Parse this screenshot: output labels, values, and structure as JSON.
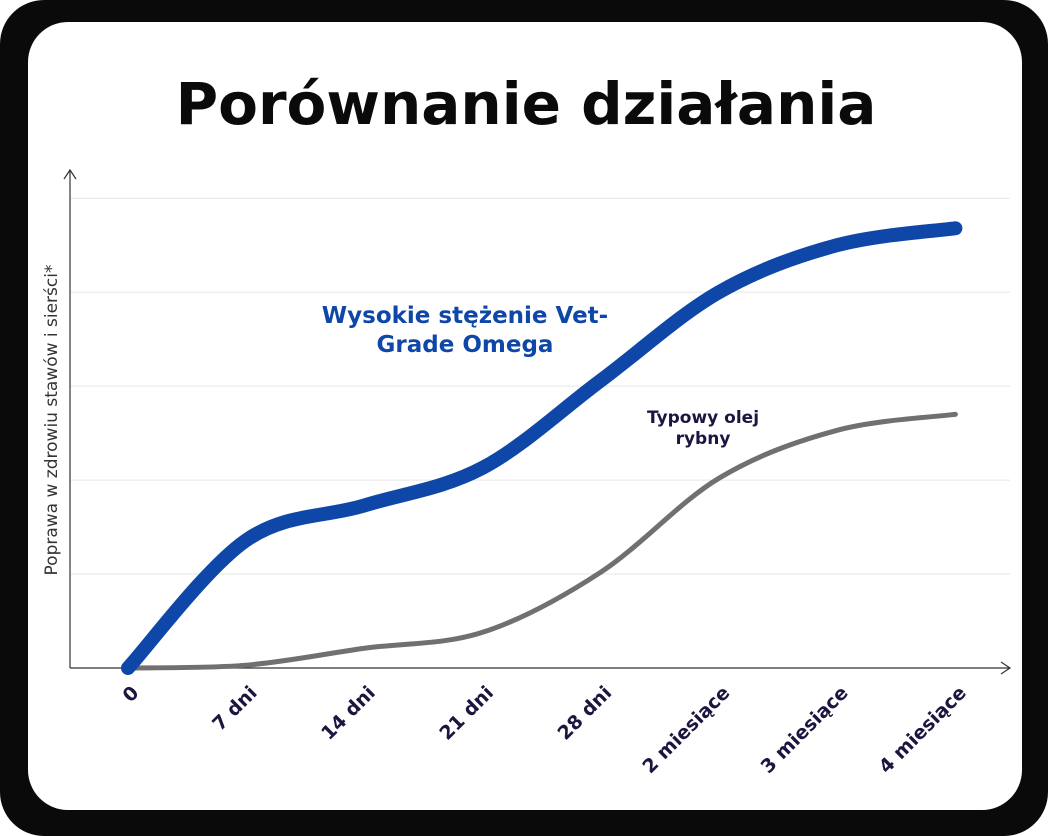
{
  "chart_data": {
    "type": "line",
    "title": "Porównanie działania",
    "y_label": "Poprawa w zdrowiu stawów i sierści*",
    "categories": [
      "0",
      "7 dni",
      "14 dni",
      "21 dni",
      "28 dni",
      "2 miesiące",
      "3 miesiące",
      "4 miesiące"
    ],
    "series": [
      {
        "name": "Wysokie stężenie Vet-Grade Omega",
        "color": "#0f47a8",
        "values": [
          0,
          1.36,
          1.73,
          2.13,
          3.06,
          4.0,
          4.5,
          4.68
        ]
      },
      {
        "name": "Typowy olej rybny",
        "color": "#707070",
        "values": [
          0,
          0.03,
          0.21,
          0.38,
          1.02,
          2.02,
          2.53,
          2.7
        ]
      }
    ],
    "ylim": [
      0,
      5.3
    ],
    "yticks": [
      1,
      2,
      3,
      4,
      5
    ],
    "grid": true
  }
}
